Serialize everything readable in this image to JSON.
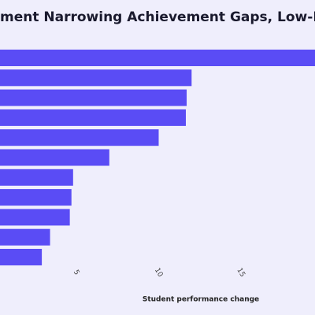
{
  "chart_data": {
    "type": "hbar",
    "title": "ment Narrowing Achievement Gaps, Low-Income S",
    "x_label": "Student performance change",
    "categories": [
      null,
      null,
      null,
      null,
      null,
      null,
      null,
      null,
      null,
      null,
      null
    ],
    "values": [
      20,
      12.0,
      11.7,
      11.65,
      10.0,
      7.0,
      4.8,
      4.7,
      4.6,
      3.4,
      2.9
    ],
    "color": "#5a4cf5",
    "xlim": [
      0,
      20
    ],
    "xticks": [
      5,
      10,
      15
    ]
  }
}
